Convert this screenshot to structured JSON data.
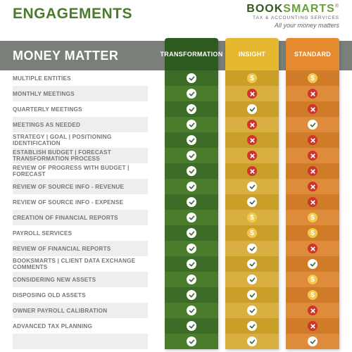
{
  "header": {
    "title": "ENGAGEMENTS",
    "brand_book": "BOOK",
    "brand_smarts": "SMARTS",
    "brand_sub": "TAX & ACCOUNTING SERVICES",
    "brand_tag": "All your money matters"
  },
  "section_title": "MONEY MATTER",
  "columns": [
    {
      "label": "TRANSFORMATION",
      "head_color": "#2e5a1f",
      "body_colors": [
        "#3d6b28",
        "#4a7c2c"
      ]
    },
    {
      "label": "INSIGHT",
      "head_color": "#e5b82f",
      "body_colors": [
        "#c99f29",
        "#d8af40"
      ]
    },
    {
      "label": "STANDARD",
      "head_color": "#e58a2f",
      "body_colors": [
        "#cf7b28",
        "#de8b3b"
      ]
    }
  ],
  "icons": {
    "check": {
      "bg": "#ffffff",
      "stroke": "#3d6b28"
    },
    "cross": {
      "bg": "#d0342c",
      "stroke": "#ffffff"
    },
    "dollar": {
      "bg": "#f2c94c",
      "fg": "#ffffff"
    }
  },
  "rows": [
    {
      "label": "MULTIPLE ENTITIES",
      "cells": [
        "check",
        "dollar",
        "dollar"
      ]
    },
    {
      "label": "MONTHLY MEETINGS",
      "cells": [
        "check",
        "cross",
        "cross"
      ]
    },
    {
      "label": "QUARTERLY MEETINGS",
      "cells": [
        "check",
        "check",
        "cross"
      ]
    },
    {
      "label": "MEETINGS AS NEEDED",
      "cells": [
        "check",
        "cross",
        "check"
      ]
    },
    {
      "label": "STRATEGY | GOAL | POSITIONING IDENTIFICATION",
      "cells": [
        "check",
        "cross",
        "cross"
      ]
    },
    {
      "label": "ESTABLISH BUDGET | FORECAST TRANSFORMATION PROCESS",
      "cells": [
        "check",
        "cross",
        "cross"
      ]
    },
    {
      "label": "REVIEW OF PROGRESS WITH BUDGET | FORECAST",
      "cells": [
        "check",
        "cross",
        "cross"
      ]
    },
    {
      "label": "REVIEW OF SOURCE INFO - REVENUE",
      "cells": [
        "check",
        "check",
        "cross"
      ]
    },
    {
      "label": "REVIEW OF SOURCE INFO - EXPENSE",
      "cells": [
        "check",
        "check",
        "cross"
      ]
    },
    {
      "label": "CREATION OF FINANCIAL REPORTS",
      "cells": [
        "check",
        "dollar",
        "dollar"
      ]
    },
    {
      "label": "PAYROLL SERVICES",
      "cells": [
        "check",
        "dollar",
        "dollar"
      ]
    },
    {
      "label": "REVIEW OF FINANCIAL REPORTS",
      "cells": [
        "check",
        "check",
        "cross"
      ]
    },
    {
      "label": "BOOKSMARTS | CLIENT DATA EXCHANGE COMMENTS",
      "cells": [
        "check",
        "check",
        "check"
      ]
    },
    {
      "label": "CONSIDERING NEW ASSETS",
      "cells": [
        "check",
        "check",
        "dollar"
      ]
    },
    {
      "label": "DISPOSING OLD ASSETS",
      "cells": [
        "check",
        "check",
        "dollar"
      ]
    },
    {
      "label": "OWNER PAYROLL CALIBRATION",
      "cells": [
        "check",
        "check",
        "cross"
      ]
    },
    {
      "label": "ADVANCED TAX PLANNING",
      "cells": [
        "check",
        "check",
        "cross"
      ]
    },
    {
      "label": "",
      "cells": [
        "check",
        "check",
        "check"
      ]
    }
  ],
  "row_alt_bg": [
    "#ffffff",
    "#eeeeee"
  ],
  "bar_bg": "#7a7f7a"
}
